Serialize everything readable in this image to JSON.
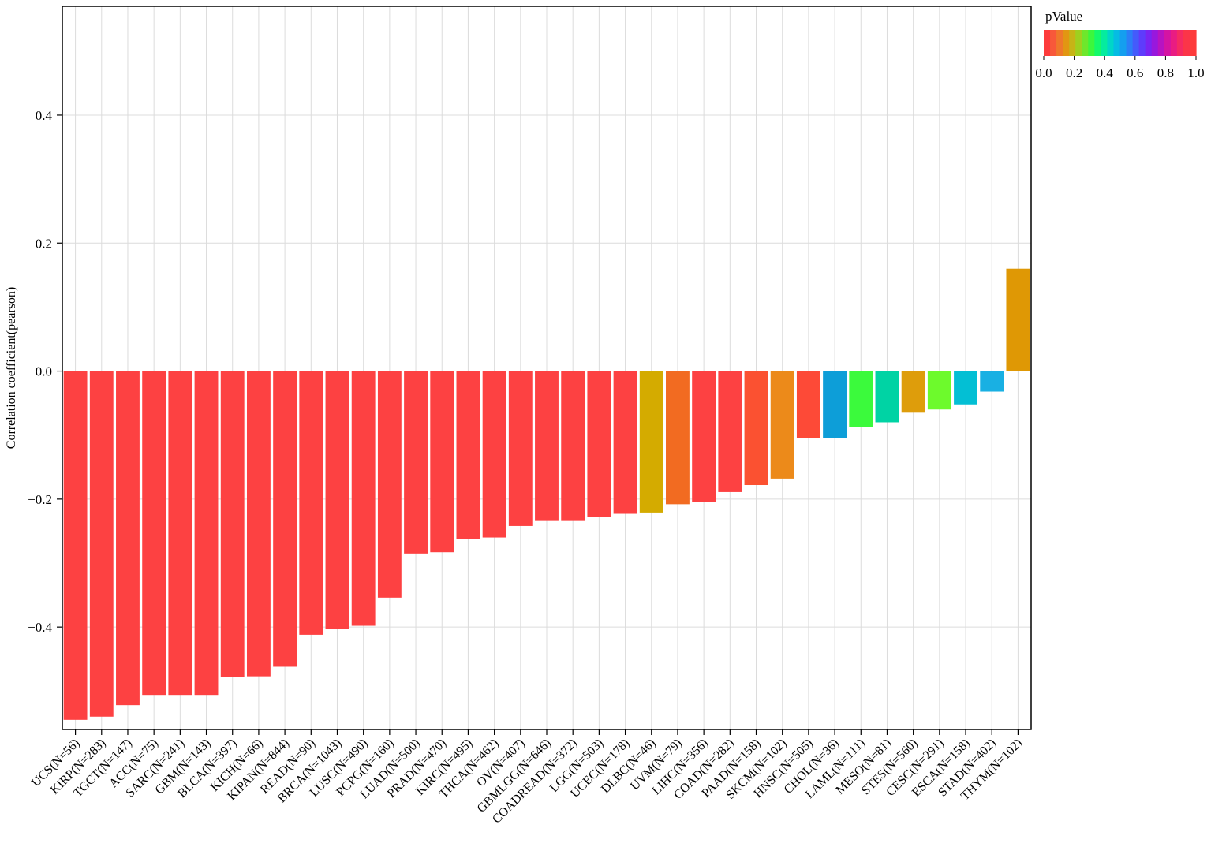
{
  "chart_data": {
    "type": "bar",
    "title": "",
    "xlabel": "",
    "ylabel": "Correlation coefficient(pearson)",
    "ylim": [
      -0.56,
      0.57
    ],
    "yticks": [
      -0.4,
      -0.2,
      0.0,
      0.2,
      0.4
    ],
    "ytick_labels": [
      "−0.4",
      "−0.2",
      "0.0",
      "0.2",
      "0.4"
    ],
    "grid": true,
    "categories": [
      "UCS(N=56)",
      "KIRP(N=283)",
      "TGCT(N=147)",
      "ACC(N=75)",
      "SARC(N=241)",
      "GBM(N=143)",
      "BLCA(N=397)",
      "KICH(N=66)",
      "KIPAN(N=844)",
      "READ(N=90)",
      "BRCA(N=1043)",
      "LUSC(N=490)",
      "PCPG(N=160)",
      "LUAD(N=500)",
      "PRAD(N=470)",
      "KIRC(N=495)",
      "THCA(N=462)",
      "OV(N=407)",
      "GBMLGG(N=646)",
      "COADREAD(N=372)",
      "LGG(N=503)",
      "UCEC(N=178)",
      "DLBC(N=46)",
      "UVM(N=79)",
      "LIHC(N=356)",
      "COAD(N=282)",
      "PAAD(N=158)",
      "SKCM(N=102)",
      "HNSC(N=505)",
      "CHOL(N=36)",
      "LAML(N=111)",
      "MESO(N=81)",
      "STES(N=560)",
      "CESC(N=291)",
      "ESCA(N=158)",
      "STAD(N=402)",
      "THYM(N=102)"
    ],
    "values": [
      -0.545,
      -0.54,
      -0.522,
      -0.506,
      -0.506,
      -0.506,
      -0.478,
      -0.477,
      -0.462,
      -0.412,
      -0.403,
      -0.398,
      -0.354,
      -0.285,
      -0.283,
      -0.262,
      -0.26,
      -0.242,
      -0.233,
      -0.233,
      -0.228,
      -0.223,
      -0.221,
      -0.208,
      -0.204,
      -0.189,
      -0.178,
      -0.168,
      -0.105,
      -0.105,
      -0.088,
      -0.08,
      -0.065,
      -0.06,
      -0.052,
      -0.032,
      0.16
    ],
    "bar_colors": [
      "#fd4142",
      "#fd4142",
      "#fd4142",
      "#fd4142",
      "#fd4142",
      "#fd4142",
      "#fd4142",
      "#fd4142",
      "#fd4142",
      "#fd4142",
      "#fd4142",
      "#fd4142",
      "#fd4142",
      "#fd4142",
      "#fd4142",
      "#fd4142",
      "#fd4142",
      "#fd4142",
      "#fd4142",
      "#fd4142",
      "#fd4142",
      "#fd4142",
      "#d4ab00",
      "#f26b21",
      "#fd4142",
      "#fd4142",
      "#fb5131",
      "#ec8a1a",
      "#fd4a37",
      "#0d9ed8",
      "#3bfa3c",
      "#00d3a4",
      "#de9d0b",
      "#6dfa2c",
      "#03bfd4",
      "#19b0e3",
      "#df9805"
    ],
    "legend": {
      "title": "pValue",
      "position": "top-right",
      "tick_labels": [
        "0.0",
        "0.2",
        "0.4",
        "0.6",
        "0.8",
        "1.0"
      ],
      "colors": [
        "#fd3b3b",
        "#f8583a",
        "#ef782b",
        "#e29612",
        "#c7b416",
        "#9fd01f",
        "#6ee72c",
        "#3cf73c",
        "#14f969",
        "#05ec9e",
        "#00d6c8",
        "#05bce3",
        "#149fef",
        "#2b7ef7",
        "#445bfb",
        "#5e3cfc",
        "#7a24f2",
        "#9818dd",
        "#b713c2",
        "#d414a3",
        "#e91c82",
        "#f52a63",
        "#fb3548",
        "#fd3b3b"
      ]
    }
  }
}
